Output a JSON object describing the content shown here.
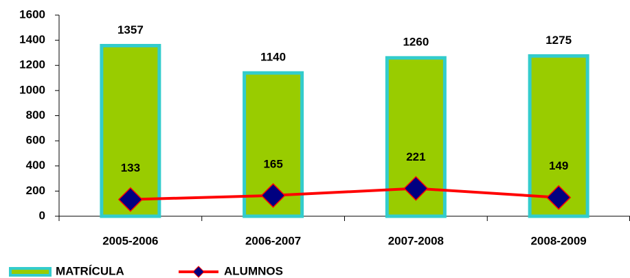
{
  "chart_data": {
    "type": "bar",
    "categories": [
      "2005-2006",
      "2006-2007",
      "2007-2008",
      "2008-2009"
    ],
    "series": [
      {
        "name": "MATRÍCULA",
        "type": "bar",
        "color": "#99cc00",
        "edge_color": "#33cccc",
        "values": [
          1357,
          1140,
          1260,
          1275
        ]
      },
      {
        "name": "ALUMNOS",
        "type": "line",
        "color": "#ff0000",
        "marker_color": "#000080",
        "values": [
          133,
          165,
          221,
          149
        ]
      }
    ],
    "ylim": [
      0,
      1600
    ],
    "yticks": [
      0,
      200,
      400,
      600,
      800,
      1000,
      1200,
      1400,
      1600
    ],
    "grid": false,
    "legend": "bottom-left"
  }
}
